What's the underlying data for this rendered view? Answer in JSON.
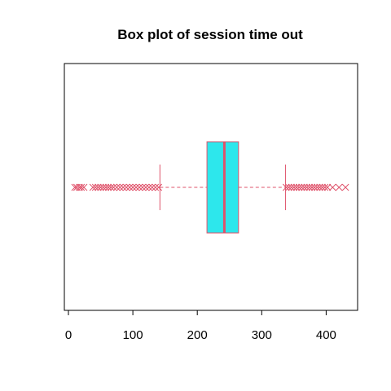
{
  "chart_data": {
    "type": "boxplot",
    "title": "Box plot of session time out",
    "xlabel": "",
    "ylabel": "",
    "orientation": "horizontal",
    "xlim": [
      0,
      450
    ],
    "x_ticks": [
      0,
      100,
      200,
      300,
      400
    ],
    "grid": false,
    "box": {
      "whisker_low": 142,
      "q1": 215,
      "median": 242,
      "q3": 264,
      "whisker_high": 337
    },
    "outliers_low": [
      10,
      13,
      17,
      20,
      24,
      38,
      42,
      46,
      50,
      54,
      58,
      62,
      66,
      70,
      75,
      80,
      85,
      90,
      95,
      100,
      105,
      110,
      115,
      120,
      125,
      130,
      135,
      140
    ],
    "outliers_high": [
      338,
      342,
      346,
      350,
      354,
      358,
      362,
      366,
      370,
      374,
      378,
      382,
      386,
      390,
      394,
      398,
      402,
      410,
      420,
      430
    ],
    "colors": {
      "box_fill": "#2de7ec",
      "accent": "#df536b",
      "frame": "#000000"
    },
    "outlier_marker": "x"
  }
}
